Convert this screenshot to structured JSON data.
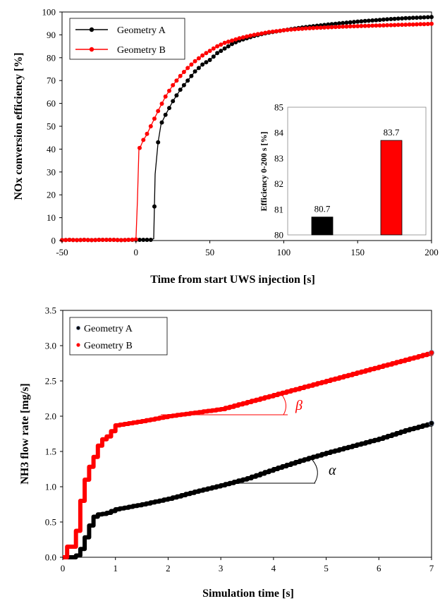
{
  "chart_data": [
    {
      "type": "line",
      "xlabel": "Time from start UWS injection [s]",
      "ylabel": "NOx conversion efficiency [%]",
      "xlim": [
        -50,
        200
      ],
      "ylim": [
        0,
        100
      ],
      "xticks": [
        -50,
        0,
        50,
        100,
        150,
        200
      ],
      "yticks": [
        0,
        10,
        20,
        30,
        40,
        50,
        60,
        70,
        80,
        90,
        100
      ],
      "grid": false,
      "legend_placement": "top-left",
      "series": [
        {
          "name": "Geometry A",
          "color": "#000000",
          "x": [
            -50,
            -45,
            -40,
            -35,
            -30,
            -25,
            -20,
            -15,
            -10,
            -5,
            0,
            5,
            10,
            12,
            13,
            15,
            17,
            20,
            25,
            30,
            35,
            40,
            45,
            50,
            55,
            60,
            65,
            70,
            75,
            80,
            85,
            90,
            100,
            110,
            120,
            130,
            140,
            150,
            160,
            170,
            180,
            190,
            200
          ],
          "y": [
            0.2,
            0.3,
            0.2,
            0.3,
            0.2,
            0.3,
            0.3,
            0.3,
            0.2,
            0.3,
            0.3,
            0.3,
            0.3,
            0.8,
            29,
            43,
            51,
            55,
            61,
            66,
            70,
            74,
            77,
            79,
            82,
            84,
            86,
            87.5,
            88.5,
            89.5,
            90.3,
            91,
            92,
            93,
            93.8,
            94.5,
            95.2,
            95.8,
            96.3,
            96.8,
            97.2,
            97.5,
            97.8
          ]
        },
        {
          "name": "Geometry B",
          "color": "#ff0000",
          "x": [
            -50,
            -45,
            -40,
            -35,
            -30,
            -25,
            -20,
            -15,
            -10,
            -5,
            -2,
            0,
            1,
            2,
            3,
            5,
            7,
            10,
            13,
            16,
            20,
            25,
            30,
            35,
            40,
            45,
            50,
            55,
            60,
            65,
            70,
            75,
            80,
            90,
            100,
            110,
            120,
            130,
            140,
            150,
            160,
            170,
            180,
            190,
            200
          ],
          "y": [
            0.2,
            0.3,
            0.2,
            0.3,
            0.2,
            0.3,
            0.3,
            0.3,
            0.2,
            0.3,
            0.4,
            0.5,
            17.5,
            40,
            41,
            44,
            46,
            50,
            54,
            58,
            63,
            68,
            72,
            75.5,
            78.5,
            81,
            83,
            85,
            86.5,
            87.5,
            88.5,
            89.3,
            90,
            91.2,
            92,
            92.6,
            93,
            93.3,
            93.6,
            93.8,
            94,
            94.2,
            94.4,
            94.6,
            94.8
          ]
        }
      ],
      "inset": {
        "type": "bar",
        "ylabel": "Efficiency  0-200 s [%]",
        "ylim": [
          80,
          85
        ],
        "yticks": [
          80,
          81,
          82,
          83,
          84,
          85
        ],
        "categories": [
          "Geometry A",
          "Geometry B"
        ],
        "values": [
          80.7,
          83.7
        ],
        "value_labels": [
          "80.7",
          "83.7"
        ],
        "colors": [
          "#000000",
          "#ff0000"
        ]
      }
    },
    {
      "type": "scatter",
      "xlabel": "Simulation time [s]",
      "ylabel": "NH3 flow rate [mg/s]",
      "xlim": [
        0,
        7
      ],
      "ylim": [
        0,
        3.5
      ],
      "xticks": [
        0,
        1,
        2,
        3,
        4,
        5,
        6,
        7
      ],
      "yticks": [
        "0.0",
        "0.5",
        "1.0",
        "1.5",
        "2.0",
        "2.5",
        "3.0",
        "3.5"
      ],
      "grid": false,
      "legend_placement": "top-left",
      "series": [
        {
          "name": "Geometry A",
          "color": "#000000",
          "x": [
            0,
            0.2,
            0.3,
            0.35,
            0.4,
            0.5,
            0.6,
            0.8,
            1.0,
            1.5,
            2.0,
            2.5,
            3.0,
            3.5,
            4.0,
            4.5,
            5.0,
            5.5,
            6.0,
            6.5,
            7.0
          ],
          "y": [
            0,
            0,
            0.05,
            0.15,
            0.25,
            0.45,
            0.6,
            0.62,
            0.68,
            0.75,
            0.83,
            0.93,
            1.02,
            1.12,
            1.25,
            1.37,
            1.48,
            1.58,
            1.68,
            1.8,
            1.9
          ]
        },
        {
          "name": "Geometry B",
          "color": "#ff0000",
          "x": [
            0,
            0.05,
            0.1,
            0.2,
            0.3,
            0.35,
            0.45,
            0.6,
            0.7,
            0.85,
            1.0,
            1.5,
            2.0,
            2.5,
            3.0,
            3.5,
            4.0,
            4.5,
            5.0,
            5.5,
            6.0,
            6.5,
            7.0
          ],
          "y": [
            0,
            0.15,
            0.15,
            0.15,
            0.6,
            0.9,
            1.2,
            1.45,
            1.65,
            1.72,
            1.87,
            1.93,
            2.0,
            2.05,
            2.1,
            2.2,
            2.3,
            2.4,
            2.5,
            2.6,
            2.7,
            2.8,
            2.9
          ]
        }
      ],
      "annotations": [
        {
          "text": "β",
          "color": "#ff0000"
        },
        {
          "text": "α",
          "color": "#000000"
        }
      ]
    }
  ]
}
